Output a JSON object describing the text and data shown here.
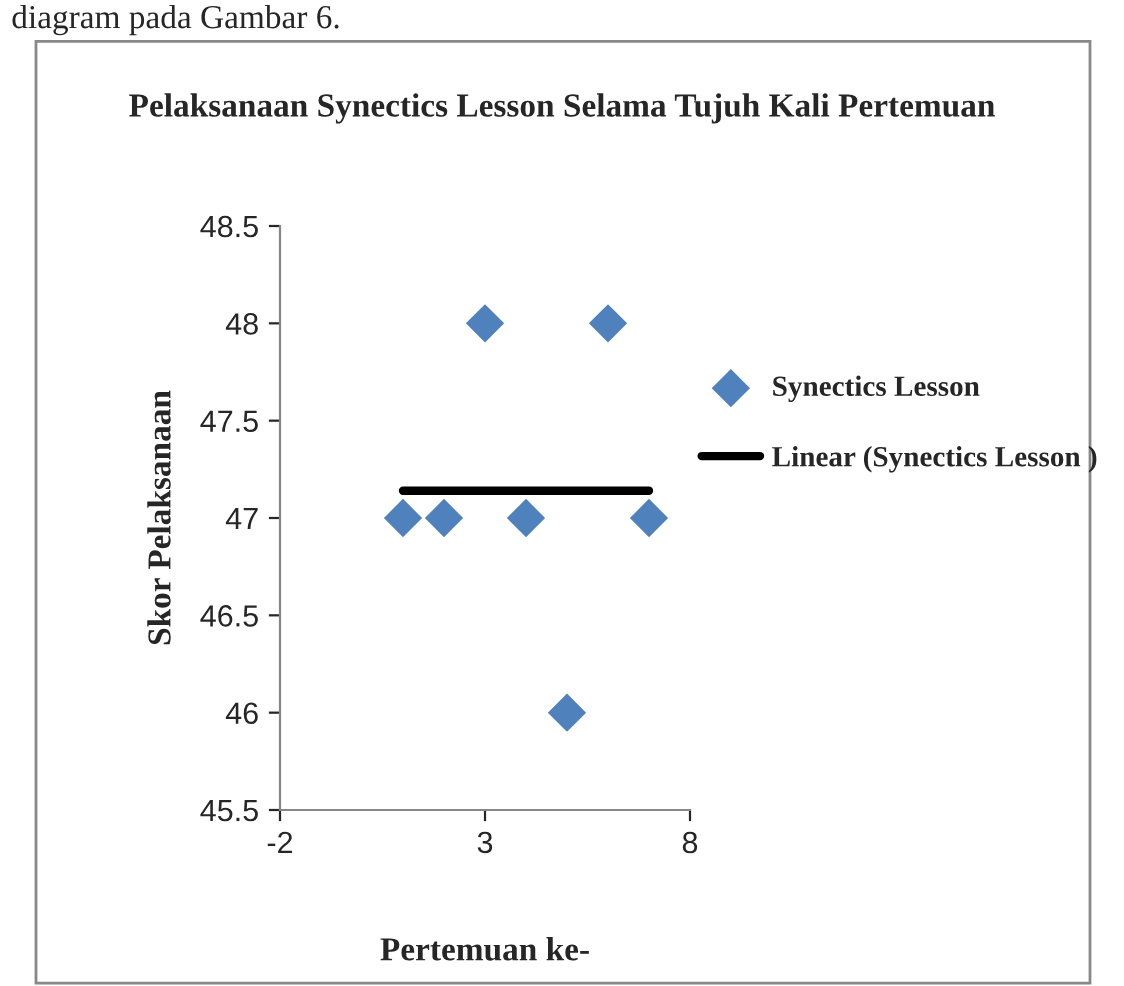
{
  "chart_data": {
    "type": "scatter",
    "title": "Pelaksanaan Synectics Lesson Selama Tujuh Kali Pertemuan",
    "xlabel": "Pertemuan ke-",
    "ylabel": "Skor Pelaksanaan",
    "annotations": [
      "diagram pada Gambar 6."
    ],
    "x": [
      1,
      2,
      3,
      4,
      5,
      6,
      7
    ],
    "series": [
      {
        "name": "Synectics Lesson",
        "color": "#4f81bd",
        "values": [
          47,
          47,
          48,
          47,
          46,
          48,
          47
        ],
        "marker": "diamond"
      },
      {
        "name": "Linear (Synectics Lesson )",
        "type": "line",
        "color": "#000000",
        "x": [
          1,
          7
        ],
        "values": [
          47.14,
          47.14
        ],
        "marker": "none",
        "line_style": "solid"
      }
    ],
    "xlim": [
      -2,
      8
    ],
    "xticks": [
      -2,
      3,
      8
    ],
    "ylim": [
      45.5,
      48.5
    ],
    "yticks": [
      45.5,
      46,
      46.5,
      47,
      47.5,
      48,
      48.5
    ],
    "grid": false,
    "legend": "right"
  }
}
